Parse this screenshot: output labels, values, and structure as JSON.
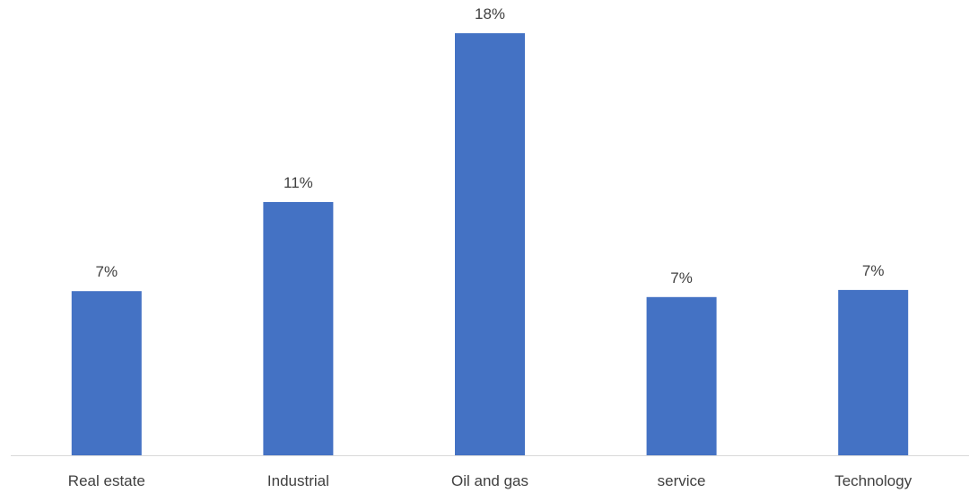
{
  "chart_data": {
    "type": "bar",
    "title": "",
    "xlabel": "",
    "ylabel": "",
    "categories": [
      "Real estate",
      "Industrial",
      "Oil and gas",
      "service",
      "Technology"
    ],
    "values": [
      7.0,
      10.8,
      18.0,
      6.75,
      7.05
    ],
    "data_labels": [
      "7%",
      "11%",
      "18%",
      "7%",
      "7%"
    ],
    "ylim": [
      0,
      19.35
    ],
    "grid": false,
    "legend": "none",
    "colors": {
      "bar": "#4472C4",
      "axis": "#D9D9D9",
      "text": "#404040"
    }
  }
}
